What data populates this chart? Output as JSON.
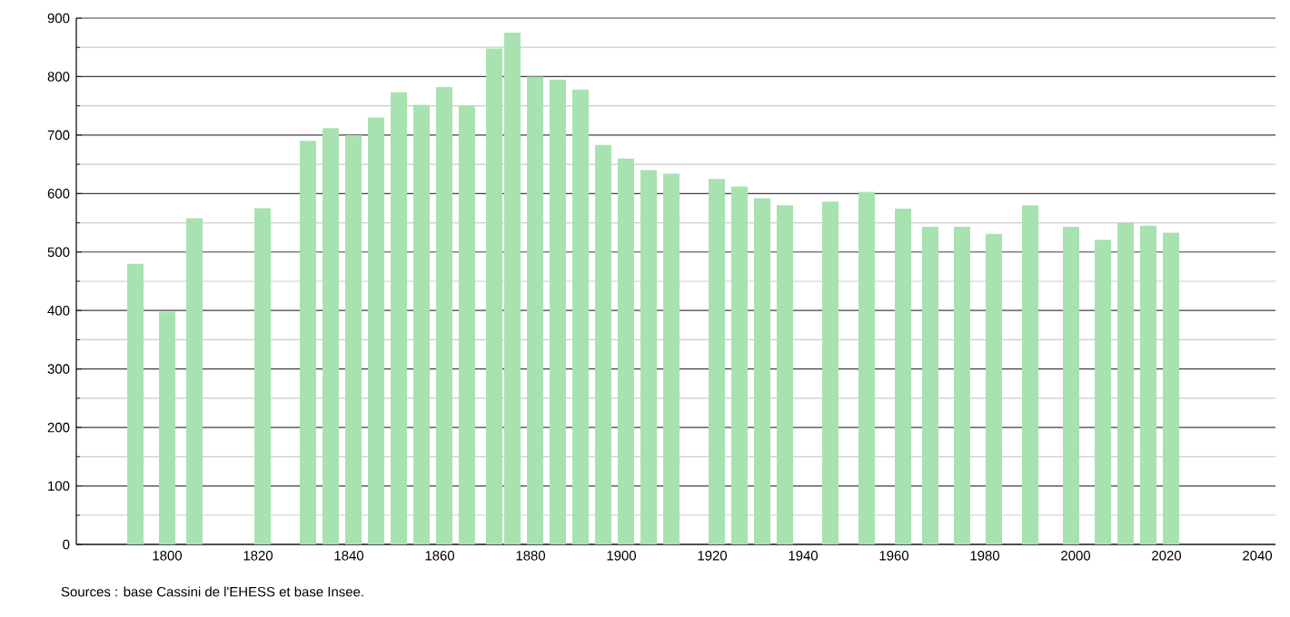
{
  "chart_data": {
    "type": "bar",
    "x": [
      1793,
      1800,
      1806,
      1821,
      1831,
      1836,
      1841,
      1846,
      1851,
      1856,
      1861,
      1866,
      1872,
      1876,
      1881,
      1886,
      1891,
      1896,
      1901,
      1906,
      1911,
      1921,
      1926,
      1931,
      1936,
      1946,
      1954,
      1962,
      1968,
      1975,
      1982,
      1990,
      1999,
      2006,
      2011,
      2016,
      2021
    ],
    "values": [
      480,
      398,
      558,
      575,
      690,
      712,
      700,
      730,
      773,
      752,
      782,
      750,
      848,
      875,
      800,
      795,
      778,
      683,
      660,
      640,
      634,
      625,
      612,
      592,
      580,
      586,
      603,
      574,
      543,
      543,
      531,
      580,
      543,
      521,
      550,
      545,
      533
    ],
    "color": "#a8e2b0",
    "xlim": [
      1780,
      2044
    ],
    "xticks": [
      1800,
      1820,
      1840,
      1860,
      1880,
      1900,
      1920,
      1940,
      1960,
      1980,
      2000,
      2020,
      2040
    ],
    "ylim": [
      0,
      900
    ],
    "yticks": [
      0,
      {
        "value": 50,
        "label": null
      },
      100,
      {
        "value": 150,
        "label": null
      },
      200,
      {
        "value": 250,
        "label": null
      },
      300,
      {
        "value": 350,
        "label": null
      },
      400,
      {
        "value": 450,
        "label": null
      },
      500,
      {
        "value": 550,
        "label": null
      },
      600,
      {
        "value": 650,
        "label": null
      },
      700,
      {
        "value": 750,
        "label": null
      },
      800,
      {
        "value": 850,
        "label": null
      },
      900
    ],
    "grid": "y",
    "annotations": [
      "Sources : base Cassini de l'EHESS et base Insee."
    ]
  }
}
